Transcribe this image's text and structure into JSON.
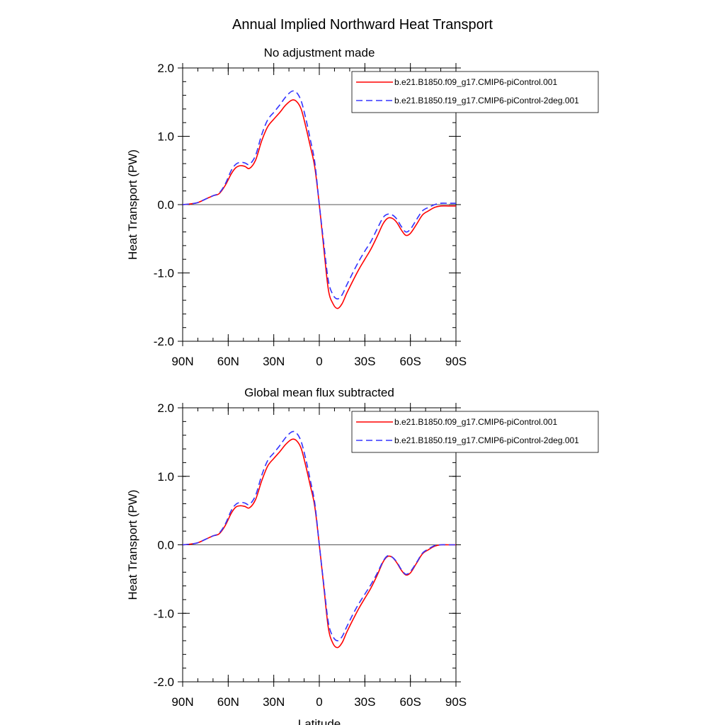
{
  "figure_title": "Annual Implied Northward Heat Transport",
  "shared_xlabel": "Latitude",
  "colors": {
    "series_1": "#ff0000",
    "series_2": "#3333ff",
    "zero_line": "#555555",
    "axis": "#000000"
  },
  "chart_data": [
    {
      "type": "line",
      "title": "No adjustment made",
      "xlabel": "",
      "ylabel": "Heat Transport (PW)",
      "xlim": [
        90,
        -90
      ],
      "ylim": [
        -2.0,
        2.0
      ],
      "x_ticks": [
        {
          "value": 90,
          "label": "90N"
        },
        {
          "value": 60,
          "label": "60N"
        },
        {
          "value": 30,
          "label": "30N"
        },
        {
          "value": 0,
          "label": "0"
        },
        {
          "value": -30,
          "label": "30S"
        },
        {
          "value": -60,
          "label": "60S"
        },
        {
          "value": -90,
          "label": "90S"
        }
      ],
      "y_ticks": [
        {
          "value": 2.0,
          "label": "2.0"
        },
        {
          "value": 1.0,
          "label": "1.0"
        },
        {
          "value": 0.0,
          "label": "0.0"
        },
        {
          "value": -1.0,
          "label": "-1.0"
        },
        {
          "value": -2.0,
          "label": "-2.0"
        }
      ],
      "zero_line": true,
      "grid": false,
      "legend_position": "top-right",
      "x": [
        90,
        85,
        80,
        75,
        70,
        66,
        62,
        58,
        55,
        52,
        49,
        46,
        42,
        38,
        34,
        30,
        26,
        22,
        18,
        15,
        12,
        9,
        6,
        3,
        0,
        -3,
        -6,
        -9,
        -12,
        -15,
        -18,
        -22,
        -26,
        -30,
        -34,
        -38,
        -42,
        -45,
        -48,
        -51,
        -54,
        -57,
        -60,
        -64,
        -68,
        -72,
        -76,
        -80,
        -85,
        -90
      ],
      "series": [
        {
          "name": "b.e21.B1850.f09_g17.CMIP6-piControl.001",
          "dash": "solid",
          "values": [
            0.0,
            0.01,
            0.03,
            0.08,
            0.13,
            0.16,
            0.28,
            0.45,
            0.54,
            0.57,
            0.56,
            0.53,
            0.65,
            0.93,
            1.14,
            1.25,
            1.35,
            1.46,
            1.53,
            1.51,
            1.4,
            1.15,
            0.86,
            0.55,
            0.0,
            -0.65,
            -1.25,
            -1.45,
            -1.52,
            -1.45,
            -1.3,
            -1.12,
            -0.95,
            -0.8,
            -0.65,
            -0.47,
            -0.28,
            -0.2,
            -0.2,
            -0.26,
            -0.37,
            -0.45,
            -0.42,
            -0.29,
            -0.15,
            -0.09,
            -0.04,
            -0.02,
            -0.02,
            -0.02
          ]
        },
        {
          "name": "b.e21.B1850.f19_g17.CMIP6-piControl-2deg.001",
          "dash": "dashed",
          "values": [
            0.0,
            0.01,
            0.03,
            0.08,
            0.13,
            0.17,
            0.3,
            0.5,
            0.59,
            0.62,
            0.61,
            0.59,
            0.72,
            1.02,
            1.24,
            1.35,
            1.46,
            1.58,
            1.66,
            1.64,
            1.52,
            1.27,
            0.96,
            0.62,
            0.0,
            -0.58,
            -1.12,
            -1.32,
            -1.38,
            -1.32,
            -1.18,
            -1.0,
            -0.83,
            -0.68,
            -0.54,
            -0.36,
            -0.19,
            -0.14,
            -0.15,
            -0.21,
            -0.32,
            -0.4,
            -0.36,
            -0.22,
            -0.09,
            -0.04,
            0.0,
            0.02,
            0.02,
            0.02
          ]
        }
      ]
    },
    {
      "type": "line",
      "title": "Global mean flux subtracted",
      "xlabel": "Latitude",
      "ylabel": "Heat Transport (PW)",
      "xlim": [
        90,
        -90
      ],
      "ylim": [
        -2.0,
        2.0
      ],
      "x_ticks": [
        {
          "value": 90,
          "label": "90N"
        },
        {
          "value": 60,
          "label": "60N"
        },
        {
          "value": 30,
          "label": "30N"
        },
        {
          "value": 0,
          "label": "0"
        },
        {
          "value": -30,
          "label": "30S"
        },
        {
          "value": -60,
          "label": "60S"
        },
        {
          "value": -90,
          "label": "90S"
        }
      ],
      "y_ticks": [
        {
          "value": 2.0,
          "label": "2.0"
        },
        {
          "value": 1.0,
          "label": "1.0"
        },
        {
          "value": 0.0,
          "label": "0.0"
        },
        {
          "value": -1.0,
          "label": "-1.0"
        },
        {
          "value": -2.0,
          "label": "-2.0"
        }
      ],
      "zero_line": true,
      "grid": false,
      "legend_position": "top-right",
      "x": [
        90,
        85,
        80,
        75,
        70,
        66,
        62,
        58,
        55,
        52,
        49,
        46,
        42,
        38,
        34,
        30,
        26,
        22,
        18,
        15,
        12,
        9,
        6,
        3,
        0,
        -3,
        -6,
        -9,
        -12,
        -15,
        -18,
        -22,
        -26,
        -30,
        -34,
        -38,
        -42,
        -45,
        -48,
        -51,
        -54,
        -57,
        -60,
        -64,
        -68,
        -72,
        -76,
        -80,
        -85,
        -90
      ],
      "series": [
        {
          "name": "b.e21.B1850.f09_g17.CMIP6-piControl.001",
          "dash": "solid",
          "values": [
            0.0,
            0.01,
            0.03,
            0.08,
            0.13,
            0.16,
            0.28,
            0.46,
            0.55,
            0.57,
            0.56,
            0.54,
            0.66,
            0.93,
            1.15,
            1.26,
            1.36,
            1.47,
            1.54,
            1.52,
            1.41,
            1.16,
            0.87,
            0.56,
            0.0,
            -0.62,
            -1.22,
            -1.44,
            -1.5,
            -1.43,
            -1.28,
            -1.1,
            -0.93,
            -0.78,
            -0.63,
            -0.45,
            -0.25,
            -0.17,
            -0.18,
            -0.26,
            -0.37,
            -0.44,
            -0.41,
            -0.27,
            -0.13,
            -0.07,
            -0.02,
            0.0,
            0.0,
            0.0
          ]
        },
        {
          "name": "b.e21.B1850.f19_g17.CMIP6-piControl-2deg.001",
          "dash": "dashed",
          "values": [
            0.0,
            0.01,
            0.03,
            0.08,
            0.13,
            0.17,
            0.3,
            0.5,
            0.59,
            0.62,
            0.61,
            0.59,
            0.72,
            1.01,
            1.23,
            1.34,
            1.45,
            1.57,
            1.65,
            1.63,
            1.51,
            1.26,
            0.95,
            0.61,
            0.0,
            -0.59,
            -1.14,
            -1.34,
            -1.4,
            -1.34,
            -1.2,
            -1.02,
            -0.86,
            -0.72,
            -0.58,
            -0.42,
            -0.24,
            -0.16,
            -0.18,
            -0.25,
            -0.36,
            -0.43,
            -0.39,
            -0.26,
            -0.12,
            -0.06,
            -0.01,
            0.0,
            0.0,
            0.0
          ]
        }
      ]
    }
  ]
}
